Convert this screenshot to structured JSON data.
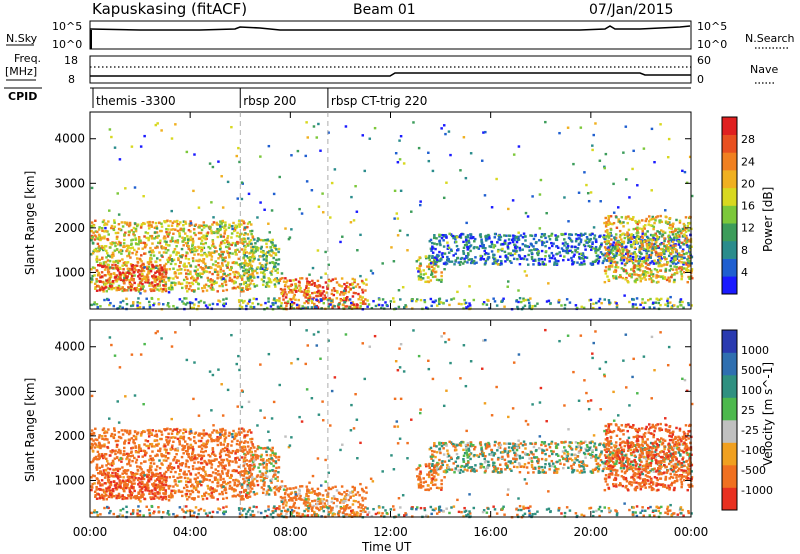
{
  "header": {
    "site": "Kapuskasing (fitACF)",
    "beam": "Beam 01",
    "date": "07/Jan/2015"
  },
  "panels": {
    "nsky": {
      "label": "N.Sky",
      "right_label": "N.Search",
      "tick_top": "10^5",
      "tick_bottom": "10^0"
    },
    "freq": {
      "label_line1": "Freq.",
      "label_line2": "[MHz]",
      "tick_top": "18",
      "tick_bottom": "8",
      "right_tick_top": "60",
      "right_tick_bottom": "0",
      "right_label": "Nave"
    },
    "cpid": {
      "label": "CPID",
      "segments": [
        {
          "label": "themis -3300",
          "start": 0
        },
        {
          "label": "rbsp 200",
          "start": 6
        },
        {
          "label": "rbsp CT-trig 220",
          "start": 9.5
        }
      ]
    }
  },
  "axes": {
    "xlabel": "Time UT",
    "ylabel": "Slant Range [km]",
    "x_ticks": [
      "00:00",
      "04:00",
      "08:00",
      "12:00",
      "16:00",
      "20:00",
      "00:00"
    ],
    "y_ticks": [
      "1000",
      "2000",
      "3000",
      "4000"
    ],
    "x_range_hours": [
      0,
      24
    ],
    "y_range_km": [
      180,
      4600
    ]
  },
  "colorbars": {
    "power": {
      "label": "Power [dB]",
      "ticks": [
        "4",
        "8",
        "12",
        "16",
        "20",
        "24",
        "28"
      ],
      "colors": [
        "#1a1aff",
        "#1f5fd0",
        "#2a8c8c",
        "#3c9c5a",
        "#7cc83a",
        "#d8d820",
        "#f0b020",
        "#f08020",
        "#e85020",
        "#e02020"
      ]
    },
    "velocity": {
      "label": "Velocity [m s^-1]",
      "ticks": [
        "1000",
        "500",
        "100",
        "25",
        "-25",
        "-100",
        "-500",
        "-1000"
      ],
      "colors": [
        "#2a3ab0",
        "#2f6fb0",
        "#2f9080",
        "#4db84d",
        "#c0c0c0",
        "#f0a020",
        "#f07020",
        "#e83020"
      ]
    }
  },
  "chart_data": {
    "type": "heatmap",
    "title": "Kapuskasing (fitACF)   Beam 01   07/Jan/2015",
    "xlabel": "Time UT",
    "ylabel": "Slant Range [km]",
    "xlim": [
      0,
      24
    ],
    "ylim": [
      180,
      4600
    ],
    "cpid_switch_hours": [
      6,
      9.5
    ],
    "echo_regions": [
      {
        "t0": 0.0,
        "t1": 6.5,
        "r0": 600,
        "r1": 2200,
        "power_db": 18,
        "velocity": -300
      },
      {
        "t0": 0.2,
        "t1": 3.0,
        "r0": 600,
        "r1": 1200,
        "power_db": 26,
        "velocity": -500
      },
      {
        "t0": 6.0,
        "t1": 7.5,
        "r0": 700,
        "r1": 1800,
        "power_db": 14,
        "velocity": -100
      },
      {
        "t0": 7.5,
        "t1": 11.0,
        "r0": 200,
        "r1": 900,
        "power_db": 24,
        "velocity": -200
      },
      {
        "t0": 13.0,
        "t1": 14.0,
        "r0": 800,
        "r1": 1400,
        "power_db": 16,
        "velocity": -300
      },
      {
        "t0": 13.5,
        "t1": 24.0,
        "r0": 1200,
        "r1": 1900,
        "power_db": 6,
        "velocity": 0
      },
      {
        "t0": 20.5,
        "t1": 24.0,
        "r0": 800,
        "r1": 2300,
        "power_db": 18,
        "velocity": -400
      }
    ]
  }
}
